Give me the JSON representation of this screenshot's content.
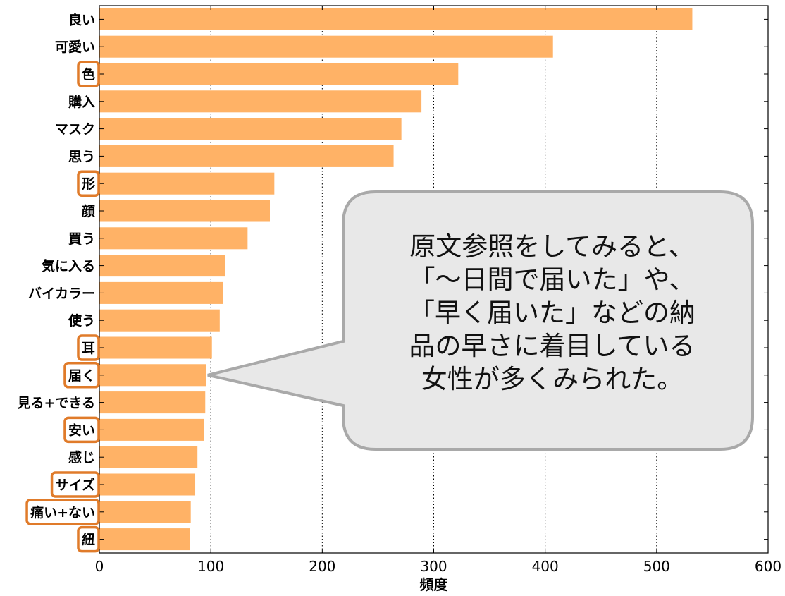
{
  "chart_data": {
    "type": "bar",
    "orientation": "horizontal",
    "categories": [
      "良い",
      "可愛い",
      "色",
      "購入",
      "マスク",
      "思う",
      "形",
      "顔",
      "買う",
      "気に入る",
      "バイカラー",
      "使う",
      "耳",
      "届く",
      "見る+できる",
      "安い",
      "感じ",
      "サイズ",
      "痛い+ない",
      "紐"
    ],
    "values": [
      532,
      407,
      322,
      289,
      271,
      264,
      157,
      153,
      133,
      113,
      111,
      108,
      101,
      96,
      95,
      94,
      88,
      86,
      82,
      81
    ],
    "highlighted": [
      "色",
      "形",
      "耳",
      "届く",
      "安い",
      "サイズ",
      "痛い+ない",
      "紐"
    ],
    "xlabel": "頻度",
    "ylabel": "",
    "xlim": [
      0,
      600
    ],
    "xticks": [
      0,
      100,
      200,
      300,
      400,
      500,
      600
    ],
    "grid": "vertical-dotted",
    "bar_color": "#ffb266",
    "highlight_color": "#e07b2a",
    "annotation": {
      "lines": [
        "原文参照をしてみると、",
        "「～日間で届いた」や、",
        "「早く届いた」などの納",
        "品の早さに着目している",
        "女性が多くみられた。"
      ],
      "points_to": "届く",
      "fill": "#e8e8e8",
      "stroke": "#a9a9a9"
    }
  }
}
